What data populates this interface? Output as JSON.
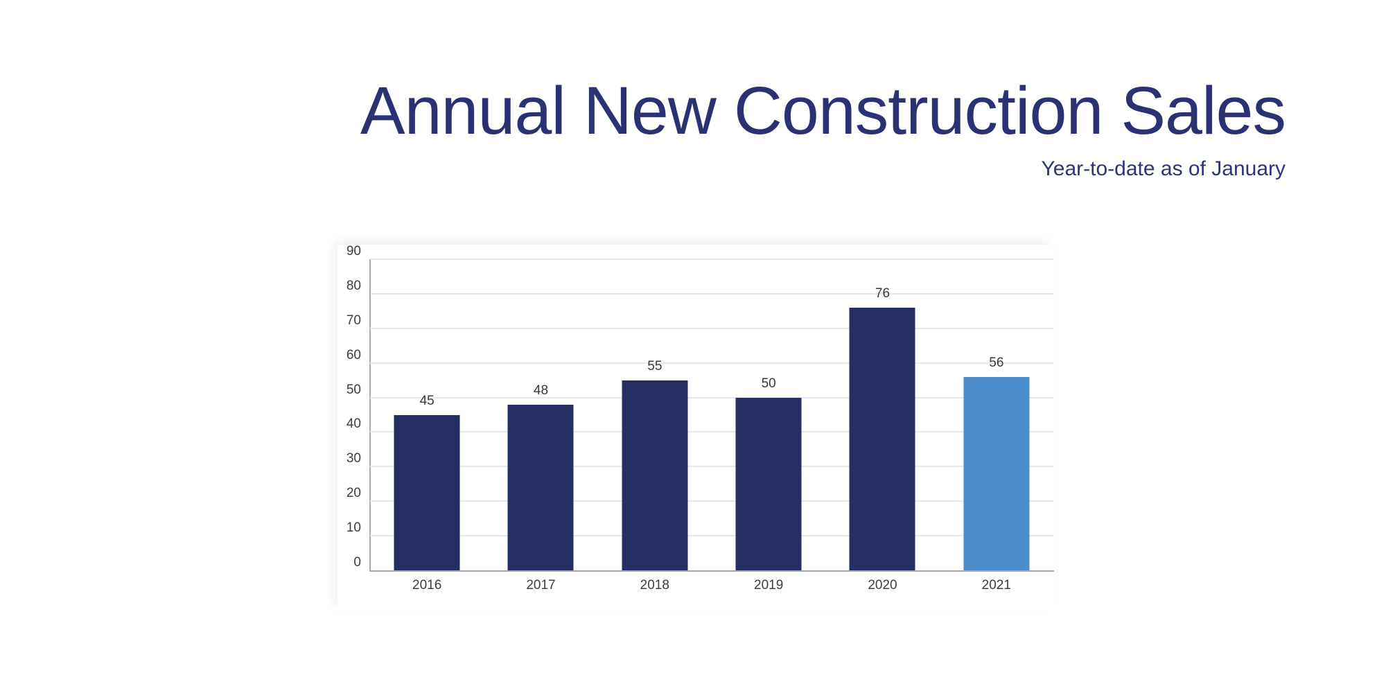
{
  "header": {
    "title": "Annual New Construction Sales",
    "subtitle": "Year-to-date as of January",
    "title_color": "#2b3274",
    "subtitle_color": "#2e3577"
  },
  "chart_data": {
    "type": "bar",
    "title": "Annual New Construction Sales",
    "subtitle": "Year-to-date as of January",
    "categories": [
      "2016",
      "2017",
      "2018",
      "2019",
      "2020",
      "2021"
    ],
    "values": [
      45,
      48,
      55,
      50,
      76,
      56
    ],
    "data_labels": [
      "45",
      "48",
      "55",
      "50",
      "76",
      "56"
    ],
    "xlabel": "",
    "ylabel": "",
    "ylim": [
      0,
      90
    ],
    "y_ticks": [
      0,
      10,
      20,
      30,
      40,
      50,
      60,
      70,
      80,
      90
    ],
    "grid": true,
    "legend": "none",
    "colors": {
      "bar_default": "#262f63",
      "bar_highlight": "#4b8ccd",
      "highlight_category": "2021",
      "gridline": "#e3e8f1",
      "axis_line": "#a9a9a9",
      "tick_text": "#3d3d3d",
      "value_label_text": "#383838"
    }
  }
}
